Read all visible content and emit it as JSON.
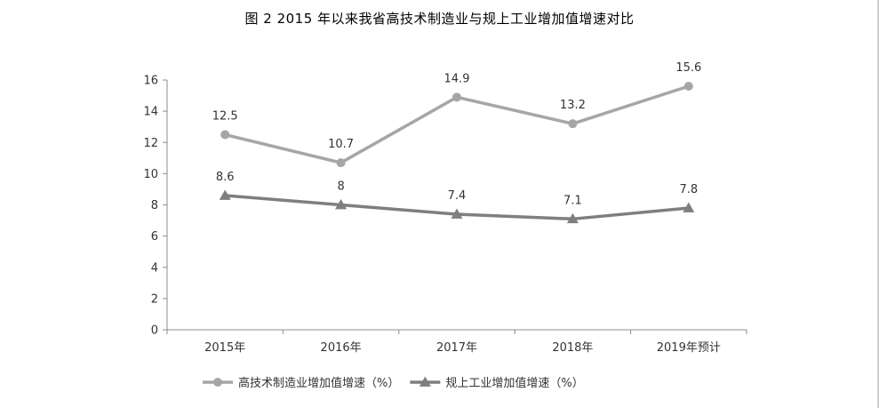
{
  "title": "图 2   2015 年以来我省高技术制造业与规上工业增加值增速对比",
  "chart_data": {
    "type": "line",
    "title": "图 2   2015 年以来我省高技术制造业与规上工业增加值增速对比",
    "categories": [
      "2015年",
      "2016年",
      "2017年",
      "2018年",
      "2019年预计"
    ],
    "ylim": [
      0,
      16
    ],
    "yticks": [
      0,
      2,
      4,
      6,
      8,
      10,
      12,
      14,
      16
    ],
    "grid": false,
    "legend_position": "bottom",
    "series": [
      {
        "name": "高技术制造业增加值增速（%）",
        "values": [
          12.5,
          10.7,
          14.9,
          13.2,
          15.6
        ],
        "labels": [
          "12.5",
          "10.7",
          "14.9",
          "13.2",
          "15.6"
        ],
        "marker": "circle",
        "color": "#a6a6a6"
      },
      {
        "name": "规上工业增加值增速（%）",
        "values": [
          8.6,
          8,
          7.4,
          7.1,
          7.8
        ],
        "labels": [
          "8.6",
          "8",
          "7.4",
          "7.1",
          "7.8"
        ],
        "marker": "triangle",
        "color": "#7f7f7f"
      }
    ]
  }
}
